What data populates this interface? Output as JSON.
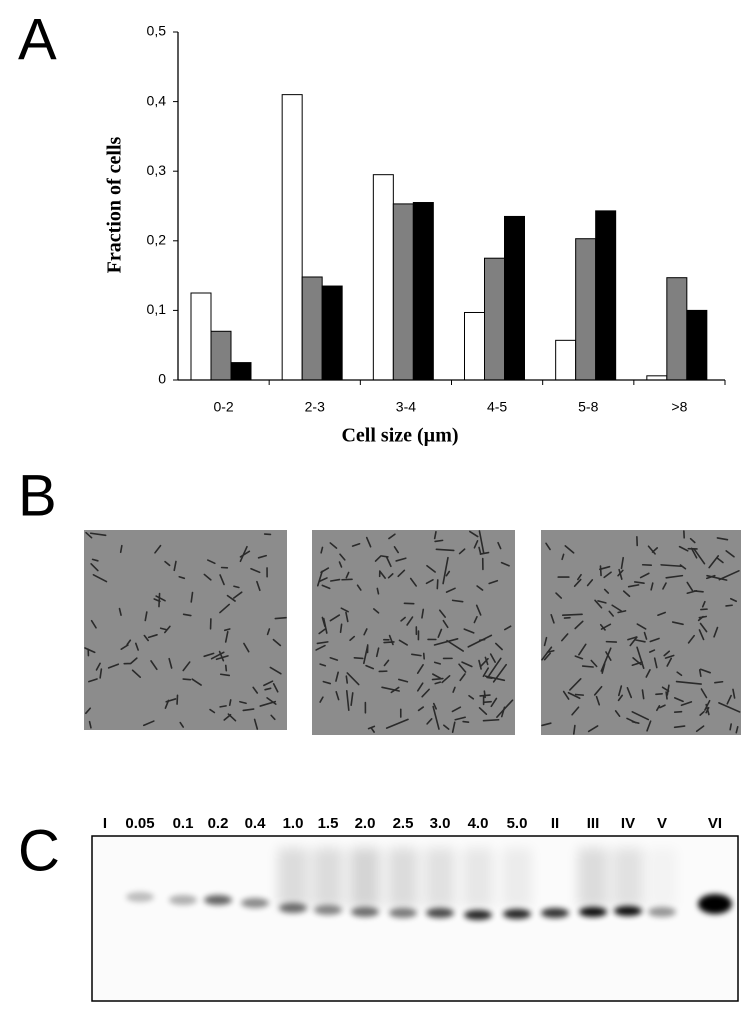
{
  "panel_labels": {
    "a": "A",
    "b": "B",
    "c": "C"
  },
  "chart_data": {
    "type": "bar",
    "xlabel": "Cell size (µm)",
    "ylabel": "Fraction of cells",
    "categories": [
      "0-2",
      "2-3",
      "3-4",
      "4-5",
      "5-8",
      ">8"
    ],
    "series": [
      {
        "color": "#ffffff",
        "values": [
          0.125,
          0.41,
          0.295,
          0.097,
          0.057,
          0.006
        ]
      },
      {
        "color": "#808080",
        "values": [
          0.07,
          0.148,
          0.253,
          0.175,
          0.203,
          0.147
        ]
      },
      {
        "color": "#000000",
        "values": [
          0.025,
          0.135,
          0.255,
          0.235,
          0.243,
          0.1
        ]
      }
    ],
    "ylim": [
      0,
      0.5
    ],
    "yticks": [
      0,
      {
        "value": 0.1,
        "label": "0,1"
      },
      {
        "value": 0.2,
        "label": "0,2"
      },
      {
        "value": 0.3,
        "label": "0,3"
      },
      {
        "value": 0.4,
        "label": "0,4"
      },
      {
        "value": 0.5,
        "label": "0,5"
      }
    ],
    "grid": false
  },
  "blot": {
    "lane_labels": [
      "I",
      "0.05",
      "0.1",
      "0.2",
      "0.4",
      "1.0",
      "1.5",
      "2.0",
      "2.5",
      "3.0",
      "4.0",
      "5.0",
      "II",
      "III",
      "IV",
      "V",
      "VI"
    ]
  }
}
